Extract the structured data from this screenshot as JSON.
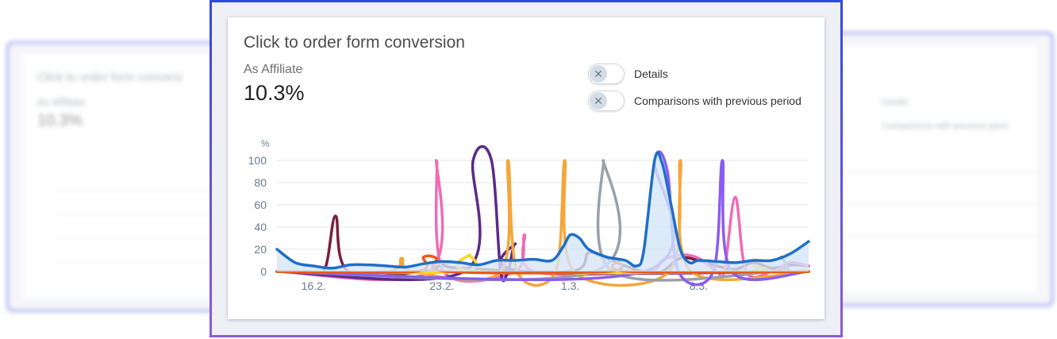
{
  "card": {
    "title": "Click to order form conversion",
    "subtitle": "As Affiliate",
    "value": "10.3%"
  },
  "toggles": [
    {
      "label": "Details",
      "on": false
    },
    {
      "label": "Comparisons with previous period",
      "on": false
    }
  ],
  "ghost_left": {
    "title": "Click to order form conversi",
    "subtitle": "As Affiliate",
    "value": "10.3%"
  },
  "ghost_right": {
    "toggle1": "Details",
    "toggle2": "Comparisons with previous perio"
  },
  "colors": {
    "frame_top": "#2f49e0",
    "frame_bottom": "#8d5bd8"
  },
  "chart_data": {
    "type": "line",
    "ylabel": "%",
    "ylim": [
      0,
      100
    ],
    "yticks": [
      0,
      20,
      40,
      60,
      80,
      100
    ],
    "xlim": [
      0,
      29
    ],
    "xticks": [
      {
        "x": 2,
        "label": "16.2."
      },
      {
        "x": 9,
        "label": "23.2."
      },
      {
        "x": 16,
        "label": "1.3."
      },
      {
        "x": 23,
        "label": "8.3."
      }
    ],
    "grid": true,
    "series": [
      {
        "color": "#7b1f3f",
        "points": [
          [
            0,
            0
          ],
          [
            1.5,
            0
          ],
          [
            2.6,
            2
          ],
          [
            3.2,
            50
          ],
          [
            3.9,
            0
          ],
          [
            8,
            0
          ],
          [
            9,
            6
          ],
          [
            10,
            3
          ],
          [
            16,
            0
          ],
          [
            17,
            17
          ],
          [
            18,
            12
          ],
          [
            19,
            5
          ],
          [
            20,
            0
          ],
          [
            21,
            0
          ],
          [
            22,
            12
          ],
          [
            23,
            10
          ],
          [
            24,
            5
          ],
          [
            25,
            2
          ],
          [
            26,
            8
          ],
          [
            27,
            3
          ],
          [
            28,
            6
          ],
          [
            29,
            5
          ]
        ]
      },
      {
        "color": "#f06bb4",
        "points": [
          [
            0,
            0
          ],
          [
            8.3,
            0
          ],
          [
            8.7,
            100
          ],
          [
            9.1,
            0
          ],
          [
            13,
            0
          ],
          [
            13.5,
            33
          ],
          [
            14,
            0
          ],
          [
            20,
            0
          ],
          [
            21,
            10
          ],
          [
            22,
            15
          ],
          [
            23,
            12
          ],
          [
            24,
            0
          ],
          [
            24.4,
            0
          ],
          [
            25,
            67
          ],
          [
            25.6,
            0
          ],
          [
            27,
            0
          ],
          [
            28,
            8
          ],
          [
            29,
            5
          ]
        ]
      },
      {
        "color": "#5b2a86",
        "points": [
          [
            0,
            0
          ],
          [
            10.2,
            0
          ],
          [
            10.7,
            100
          ],
          [
            11.7,
            100
          ],
          [
            12.2,
            0
          ],
          [
            12.6,
            0
          ],
          [
            13,
            25
          ],
          [
            13.5,
            0
          ],
          [
            29,
            0
          ]
        ]
      },
      {
        "color": "#f4a63a",
        "points": [
          [
            0,
            0
          ],
          [
            6,
            0
          ],
          [
            6.8,
            12
          ],
          [
            7.4,
            0
          ],
          [
            12.2,
            0
          ],
          [
            12.6,
            100
          ],
          [
            13.1,
            0
          ],
          [
            15.2,
            0
          ],
          [
            15.7,
            100
          ],
          [
            16.2,
            0
          ],
          [
            21.4,
            0
          ],
          [
            22,
            100
          ],
          [
            22.6,
            0
          ],
          [
            29,
            0
          ]
        ]
      },
      {
        "color": "#9aa0aa",
        "points": [
          [
            0,
            0
          ],
          [
            17.3,
            0
          ],
          [
            17.8,
            100
          ],
          [
            18.3,
            0
          ],
          [
            27,
            0
          ],
          [
            27.5,
            13
          ],
          [
            28,
            0
          ],
          [
            29,
            0
          ]
        ]
      },
      {
        "color": "#8a5cf0",
        "points": [
          [
            0,
            0
          ],
          [
            20,
            0
          ],
          [
            20.6,
            100
          ],
          [
            21.3,
            90
          ],
          [
            21.9,
            0
          ],
          [
            23.8,
            0
          ],
          [
            24.3,
            100
          ],
          [
            24.8,
            0
          ],
          [
            29,
            0
          ]
        ]
      },
      {
        "color": "#f7d62a",
        "points": [
          [
            0,
            0
          ],
          [
            10,
            0
          ],
          [
            10.5,
            15
          ],
          [
            11,
            0
          ],
          [
            25.5,
            0
          ],
          [
            26,
            5
          ],
          [
            26.5,
            0
          ],
          [
            29,
            0
          ]
        ]
      },
      {
        "color": "#e85a1e",
        "points": [
          [
            0,
            0
          ],
          [
            7.5,
            0
          ],
          [
            8,
            13
          ],
          [
            8.7,
            12
          ],
          [
            9.3,
            0
          ],
          [
            18,
            0
          ],
          [
            18.6,
            10
          ],
          [
            19.2,
            0
          ],
          [
            29,
            0
          ]
        ]
      },
      {
        "color": "#1e6fc8",
        "fill": "#d5e6f7",
        "points": [
          [
            0,
            20
          ],
          [
            1,
            8
          ],
          [
            2,
            5
          ],
          [
            3,
            3
          ],
          [
            4,
            6
          ],
          [
            5,
            6
          ],
          [
            6,
            5
          ],
          [
            7,
            4
          ],
          [
            8,
            7
          ],
          [
            9,
            9
          ],
          [
            10,
            8
          ],
          [
            11,
            6
          ],
          [
            12,
            10
          ],
          [
            13,
            10
          ],
          [
            14,
            11
          ],
          [
            15,
            10
          ],
          [
            15.6,
            22
          ],
          [
            16,
            33
          ],
          [
            16.5,
            30
          ],
          [
            17,
            20
          ],
          [
            18,
            13
          ],
          [
            19,
            10
          ],
          [
            19.6,
            5
          ],
          [
            20,
            18
          ],
          [
            20.6,
            100
          ],
          [
            21,
            98
          ],
          [
            21.5,
            60
          ],
          [
            22,
            20
          ],
          [
            22.5,
            8
          ],
          [
            23,
            10
          ],
          [
            24,
            9
          ],
          [
            25,
            8
          ],
          [
            26,
            10
          ],
          [
            27,
            10
          ],
          [
            28,
            16
          ],
          [
            29,
            27
          ]
        ]
      }
    ]
  }
}
